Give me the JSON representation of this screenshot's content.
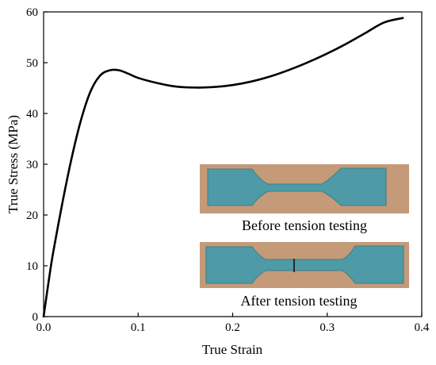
{
  "chart_data": {
    "type": "line",
    "xlabel": "True Strain",
    "ylabel": "True Stress (MPa)",
    "xlim": [
      0.0,
      0.4
    ],
    "ylim": [
      0,
      60
    ],
    "x_ticks": [
      "0.0",
      "0.1",
      "0.2",
      "0.3",
      "0.4"
    ],
    "y_ticks": [
      "0",
      "10",
      "20",
      "30",
      "40",
      "50",
      "60"
    ],
    "grid": false,
    "series": [
      {
        "color": "#000000",
        "x": [
          0.0,
          0.005,
          0.01,
          0.02,
          0.03,
          0.04,
          0.05,
          0.06,
          0.07,
          0.08,
          0.09,
          0.1,
          0.12,
          0.14,
          0.16,
          0.18,
          0.2,
          0.22,
          0.24,
          0.26,
          0.28,
          0.3,
          0.32,
          0.34,
          0.36,
          0.38
        ],
        "y": [
          0,
          6.5,
          12.5,
          22.5,
          31.5,
          39.0,
          44.5,
          47.5,
          48.5,
          48.5,
          47.8,
          47.0,
          46.0,
          45.3,
          45.1,
          45.2,
          45.6,
          46.3,
          47.3,
          48.6,
          50.1,
          51.8,
          53.7,
          55.8,
          57.9,
          58.8
        ]
      }
    ]
  },
  "insets": [
    {
      "caption": "Before tension testing"
    },
    {
      "caption": "After tension testing"
    }
  ],
  "colors": {
    "wood": "#c49a78",
    "specimen": "#4e9aa6"
  }
}
